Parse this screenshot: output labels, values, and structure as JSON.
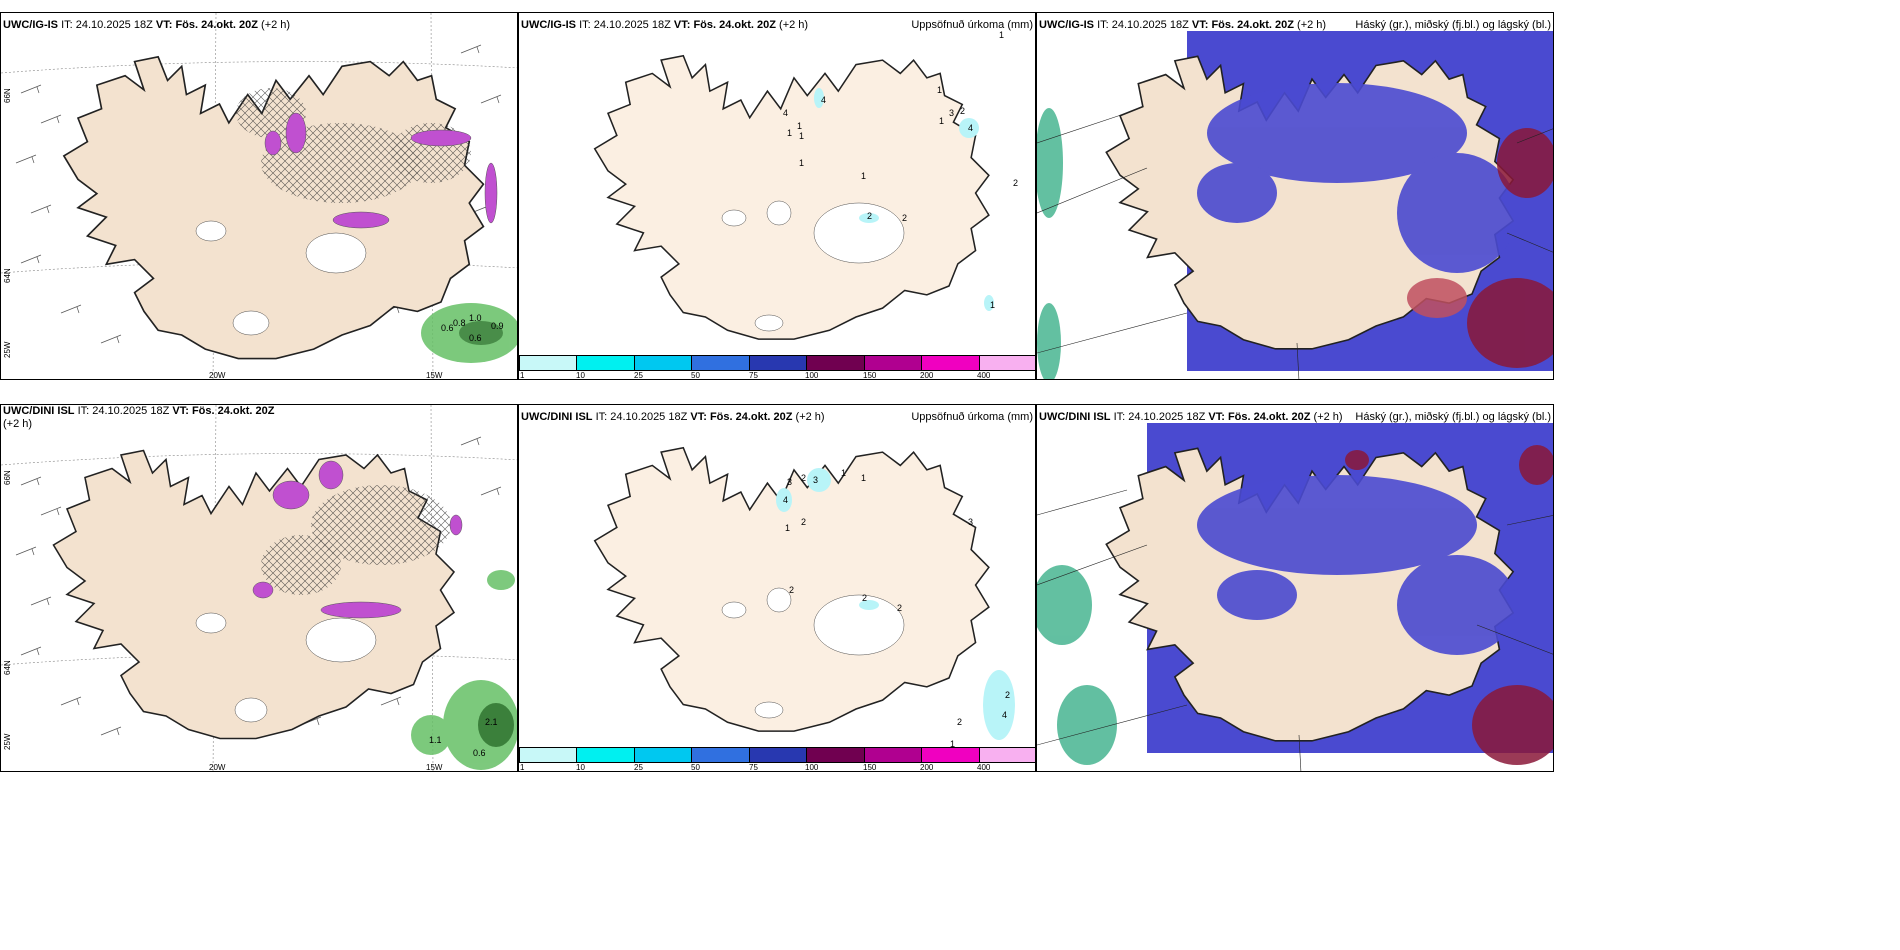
{
  "panels": {
    "p1": {
      "model": "UWC/IG-IS",
      "init_label": "IT:",
      "init": "24.10.2025 18Z",
      "valid_label": "VT:",
      "valid": "Fös. 24.okt. 20Z",
      "lead": "(+2 h)"
    },
    "p2": {
      "model": "UWC/IG-IS",
      "init_label": "IT:",
      "init": "24.10.2025 18Z",
      "valid_label": "VT:",
      "valid": "Fös. 24.okt. 20Z",
      "lead": "(+2 h)",
      "right": "Uppsöfnuð úrkoma (mm)"
    },
    "p3": {
      "model": "UWC/IG-IS",
      "init_label": "IT:",
      "init": "24.10.2025 18Z",
      "valid_label": "VT:",
      "valid": "Fös. 24.okt. 20Z",
      "lead": "(+2 h)",
      "right": "Háský (gr.), miðský (fj.bl.) og lágský (bl.)"
    },
    "p4": {
      "model": "UWC/DINI ISL",
      "init_label": "IT:",
      "init": "24.10.2025 18Z",
      "valid_label": "VT:",
      "valid": "Fös. 24.okt. 20Z",
      "lead": "(+2",
      "lead2": "h)"
    },
    "p5": {
      "model": "UWC/DINI ISL",
      "init_label": "IT:",
      "init": "24.10.2025 18Z",
      "valid_label": "VT:",
      "valid": "Fös. 24.okt. 20Z",
      "lead": "(+2 h)",
      "right": "Uppsöfnuð úrkoma (mm)"
    },
    "p6": {
      "model": "UWC/DINI ISL",
      "init_label": "IT:",
      "init": "24.10.2025 18Z",
      "valid_label": "VT:",
      "valid": "Fös. 24.okt. 20Z",
      "lead": "(+2 h)",
      "right": "Háský (gr.), miðský (fj.bl.) og lágský (bl.)"
    }
  },
  "axis": {
    "lat66": "66N",
    "lat64": "64N",
    "lon25": "25W",
    "lon20": "20W",
    "lon15": "15W"
  },
  "precip_colorbar": {
    "ticks": [
      "1",
      "10",
      "25",
      "50",
      "75",
      "100",
      "150",
      "200",
      "400"
    ],
    "colors": [
      "#c8f8f8",
      "#00f0f0",
      "#00c8f0",
      "#3070e0",
      "#2838b0",
      "#700050",
      "#b00090",
      "#f000c0",
      "#f8b0f0"
    ]
  },
  "wind_labels_top": [
    "0.6",
    "0.8",
    "1.0",
    "0.9",
    "0.6"
  ],
  "wind_labels_bottom": [
    "1.1",
    "0.6",
    "2.1"
  ],
  "precip_top_values": [
    "4",
    "4",
    "1",
    "1",
    "1",
    "1",
    "1",
    "1",
    "1",
    "3",
    "2",
    "1",
    "4",
    "2",
    "2",
    "2",
    "1"
  ],
  "precip_bottom_values": [
    "3",
    "2",
    "3",
    "1",
    "1",
    "4",
    "1",
    "2",
    "3",
    "2",
    "2",
    "2",
    "2",
    "4",
    "2",
    "1"
  ],
  "colors": {
    "land": "#f3e2cf",
    "land_precip": "#fbefe2",
    "cloud_high": "#4a4ad0",
    "cloud_low": "#8a1838",
    "cloud_mid": "#6a78d8",
    "green": "#66c066",
    "magenta": "#b040c0"
  }
}
